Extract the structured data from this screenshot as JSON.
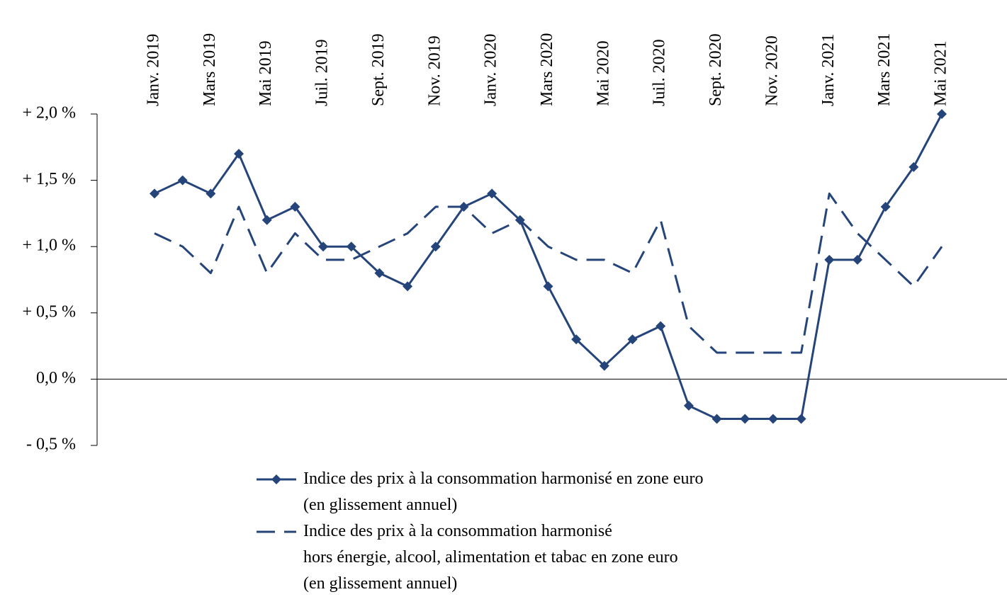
{
  "chart_data": {
    "type": "line",
    "categories": [
      "Janv. 2019",
      null,
      "Mars 2019",
      null,
      "Mai 2019",
      null,
      "Juil. 2019",
      null,
      "Sept. 2019",
      null,
      "Nov. 2019",
      null,
      "Janv. 2020",
      null,
      "Mars 2020",
      null,
      "Mai 2020",
      null,
      "Juil. 2020",
      null,
      "Sept. 2020",
      null,
      "Nov. 2020",
      null,
      "Janv. 2021",
      null,
      "Mars 2021",
      null,
      "Mai 2021"
    ],
    "series": [
      {
        "name": "Indice des prix à la consommation harmonisé en zone euro\n(en glissement annuel)",
        "color": "#25457a",
        "line_style": "solid",
        "marker": "diamond",
        "values": [
          1.4,
          1.5,
          1.4,
          1.7,
          1.2,
          1.3,
          1.0,
          1.0,
          0.8,
          0.7,
          1.0,
          1.3,
          1.4,
          1.2,
          0.7,
          0.3,
          0.1,
          0.3,
          0.4,
          -0.2,
          -0.3,
          -0.3,
          -0.3,
          -0.3,
          0.9,
          0.9,
          1.3,
          1.6,
          2.0
        ]
      },
      {
        "name": "Indice des prix à la consommation harmonisé\nhors énergie, alcool, alimentation et tabac en zone euro\n(en glissement annuel)",
        "color": "#25457a",
        "line_style": "dashed",
        "marker": "none",
        "values": [
          1.1,
          1.0,
          0.8,
          1.3,
          0.8,
          1.1,
          0.9,
          0.9,
          1.0,
          1.1,
          1.3,
          1.3,
          1.1,
          1.2,
          1.0,
          0.9,
          0.9,
          0.8,
          1.2,
          0.4,
          0.2,
          0.2,
          0.2,
          0.2,
          1.4,
          1.1,
          0.9,
          0.7,
          1.0
        ]
      }
    ],
    "ylim": [
      -0.5,
      2.0
    ],
    "yticks": [
      {
        "value": -0.5,
        "label": "- 0,5 %"
      },
      {
        "value": 0,
        "label": "0,0 %"
      },
      {
        "value": 0.5,
        "label": "+ 0,5 %"
      },
      {
        "value": 1.0,
        "label": "+ 1,0 %"
      },
      {
        "value": 1.5,
        "label": "+ 1,5 %"
      },
      {
        "value": 2.0,
        "label": "+ 2,0 %"
      }
    ],
    "grid": false,
    "legend": "bottom"
  }
}
